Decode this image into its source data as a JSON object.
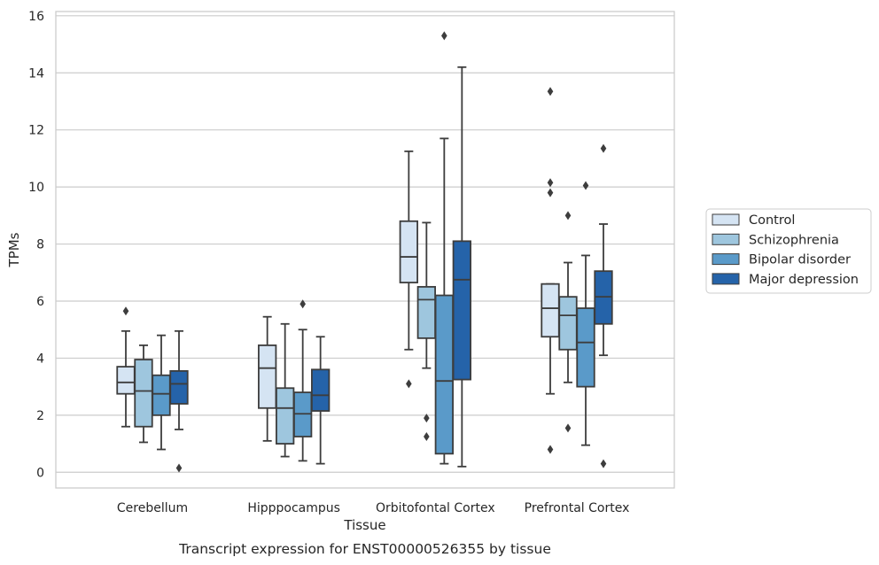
{
  "chart_data": {
    "type": "box",
    "title": "",
    "caption": "Transcript expression for ENST00000526355 by tissue",
    "xlabel": "Tissue",
    "ylabel": "TPMs",
    "ylim": [
      -0.55,
      16.15
    ],
    "yticks": [
      0,
      2,
      4,
      6,
      8,
      10,
      12,
      14,
      16
    ],
    "grid": true,
    "legend_position": "right-outside",
    "categories": [
      "Cerebellum",
      "Hipppocampus",
      "Orbitofontal Cortex",
      "Prefrontal Cortex"
    ],
    "series": [
      {
        "name": "Control",
        "color": "#d5e4f3",
        "boxes": [
          {
            "whisker_low": 1.6,
            "q1": 2.75,
            "median": 3.15,
            "q3": 3.7,
            "whisker_high": 4.95,
            "outliers": [
              5.65
            ]
          },
          {
            "whisker_low": 1.1,
            "q1": 2.25,
            "median": 3.65,
            "q3": 4.45,
            "whisker_high": 5.45,
            "outliers": []
          },
          {
            "whisker_low": 4.3,
            "q1": 6.65,
            "median": 7.55,
            "q3": 8.8,
            "whisker_high": 11.25,
            "outliers": [
              3.1
            ]
          },
          {
            "whisker_low": 2.75,
            "q1": 4.75,
            "median": 5.75,
            "q3": 6.6,
            "whisker_high": 6.6,
            "outliers": [
              13.35,
              10.15,
              9.8,
              0.8
            ]
          }
        ]
      },
      {
        "name": "Schizophrenia",
        "color": "#9ec6de",
        "boxes": [
          {
            "whisker_low": 1.05,
            "q1": 1.6,
            "median": 2.85,
            "q3": 3.95,
            "whisker_high": 4.45,
            "outliers": []
          },
          {
            "whisker_low": 0.55,
            "q1": 1.0,
            "median": 2.25,
            "q3": 2.95,
            "whisker_high": 5.2,
            "outliers": []
          },
          {
            "whisker_low": 3.65,
            "q1": 4.7,
            "median": 6.05,
            "q3": 6.5,
            "whisker_high": 8.75,
            "outliers": [
              1.9,
              1.25
            ]
          },
          {
            "whisker_low": 3.15,
            "q1": 4.3,
            "median": 5.5,
            "q3": 6.15,
            "whisker_high": 7.35,
            "outliers": [
              9.0,
              1.55
            ]
          }
        ]
      },
      {
        "name": "Bipolar disorder",
        "color": "#5a9ac9",
        "boxes": [
          {
            "whisker_low": 0.8,
            "q1": 2.0,
            "median": 2.75,
            "q3": 3.4,
            "whisker_high": 4.8,
            "outliers": []
          },
          {
            "whisker_low": 0.4,
            "q1": 1.25,
            "median": 2.05,
            "q3": 2.8,
            "whisker_high": 5.0,
            "outliers": [
              5.9
            ]
          },
          {
            "whisker_low": 0.3,
            "q1": 0.65,
            "median": 3.2,
            "q3": 6.2,
            "whisker_high": 11.7,
            "outliers": [
              15.3
            ]
          },
          {
            "whisker_low": 0.95,
            "q1": 3.0,
            "median": 4.55,
            "q3": 5.75,
            "whisker_high": 7.6,
            "outliers": [
              10.05
            ]
          }
        ]
      },
      {
        "name": "Major depression",
        "color": "#2563a9",
        "boxes": [
          {
            "whisker_low": 1.5,
            "q1": 2.4,
            "median": 3.1,
            "q3": 3.55,
            "whisker_high": 4.95,
            "outliers": [
              0.15
            ]
          },
          {
            "whisker_low": 0.3,
            "q1": 2.15,
            "median": 2.7,
            "q3": 3.6,
            "whisker_high": 4.75,
            "outliers": []
          },
          {
            "whisker_low": 0.2,
            "q1": 3.25,
            "median": 6.75,
            "q3": 8.1,
            "whisker_high": 14.2,
            "outliers": []
          },
          {
            "whisker_low": 4.1,
            "q1": 5.2,
            "median": 6.15,
            "q3": 7.05,
            "whisker_high": 8.7,
            "outliers": [
              11.35,
              0.3
            ]
          }
        ]
      }
    ]
  }
}
